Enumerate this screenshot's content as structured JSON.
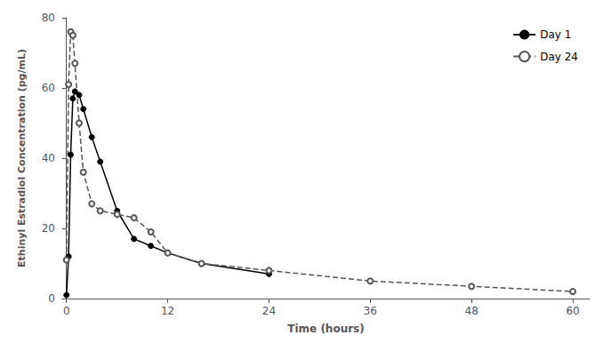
{
  "chart_data": {
    "type": "line",
    "xlabel": "Time (hours)",
    "ylabel": "Ethinyl Estradiol Concentration (pg/mL)",
    "xlim": [
      -0.5,
      62
    ],
    "ylim": [
      0,
      80
    ],
    "xticks": [
      0,
      12,
      24,
      36,
      48,
      60
    ],
    "yticks": [
      0,
      20,
      40,
      60,
      80
    ],
    "grid": false,
    "legend": "upper right",
    "series": [
      {
        "name": "Day 1",
        "color": "#000000",
        "line_style": "solid",
        "marker": "circle",
        "x": [
          0,
          0.25,
          0.5,
          0.75,
          1,
          1.5,
          2,
          3,
          4,
          6,
          8,
          10,
          12,
          16,
          24
        ],
        "values": [
          1,
          12,
          41,
          57,
          59,
          58,
          54,
          46,
          39,
          25,
          17,
          15,
          13,
          10,
          7
        ]
      },
      {
        "name": "Day 24",
        "color": "#555555",
        "line_style": "dashed",
        "marker": "open_circle",
        "x": [
          0,
          0.25,
          0.5,
          0.75,
          1,
          1.5,
          2,
          3,
          4,
          6,
          8,
          10,
          12,
          16,
          24,
          36,
          48,
          60
        ],
        "values": [
          11,
          61,
          76,
          75,
          67,
          50,
          36,
          27,
          25,
          24,
          23,
          19,
          13,
          10,
          8,
          5,
          3.5,
          2
        ]
      }
    ]
  }
}
